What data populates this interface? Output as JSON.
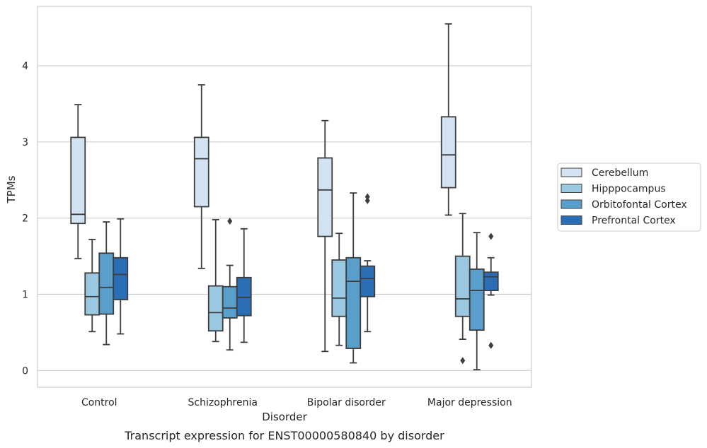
{
  "chart_data": {
    "type": "box",
    "xlabel": "Disorder",
    "ylabel": "TPMs",
    "caption": "Transcript expression for ENST00000580840 by disorder",
    "ylim": [
      -0.22,
      4.78
    ],
    "yticks": [
      0,
      1,
      2,
      3,
      4
    ],
    "grid": "horizontal",
    "legend_position": "right",
    "categories": [
      "Control",
      "Schizophrenia",
      "Bipolar disorder",
      "Major depression"
    ],
    "series": [
      {
        "name": "Cerebellum",
        "color": "#d3e3f3",
        "boxes": [
          {
            "whislo": 1.47,
            "q1": 1.93,
            "med": 2.05,
            "q3": 3.06,
            "whishi": 3.49,
            "fliers": []
          },
          {
            "whislo": 1.34,
            "q1": 2.15,
            "med": 2.78,
            "q3": 3.06,
            "whishi": 3.75,
            "fliers": []
          },
          {
            "whislo": 0.25,
            "q1": 1.76,
            "med": 2.37,
            "q3": 2.79,
            "whishi": 3.28,
            "fliers": []
          },
          {
            "whislo": 2.04,
            "q1": 2.4,
            "med": 2.83,
            "q3": 3.33,
            "whishi": 4.55,
            "fliers": []
          }
        ]
      },
      {
        "name": "Hipppocampus",
        "color": "#9ac8e0",
        "boxes": [
          {
            "whislo": 0.51,
            "q1": 0.73,
            "med": 0.97,
            "q3": 1.28,
            "whishi": 1.72,
            "fliers": []
          },
          {
            "whislo": 0.38,
            "q1": 0.52,
            "med": 0.76,
            "q3": 1.11,
            "whishi": 1.98,
            "fliers": []
          },
          {
            "whislo": 0.33,
            "q1": 0.71,
            "med": 0.95,
            "q3": 1.45,
            "whishi": 1.8,
            "fliers": []
          },
          {
            "whislo": 0.41,
            "q1": 0.71,
            "med": 0.94,
            "q3": 1.5,
            "whishi": 2.06,
            "fliers": [
              0.13
            ]
          }
        ]
      },
      {
        "name": "Orbitofontal Cortex",
        "color": "#5a9fcb",
        "boxes": [
          {
            "whislo": 0.34,
            "q1": 0.74,
            "med": 1.09,
            "q3": 1.54,
            "whishi": 1.95,
            "fliers": []
          },
          {
            "whislo": 0.27,
            "q1": 0.69,
            "med": 0.82,
            "q3": 1.1,
            "whishi": 1.38,
            "fliers": [
              1.96
            ]
          },
          {
            "whislo": 0.1,
            "q1": 0.29,
            "med": 1.17,
            "q3": 1.48,
            "whishi": 2.33,
            "fliers": []
          },
          {
            "whislo": 0.01,
            "q1": 0.53,
            "med": 1.05,
            "q3": 1.33,
            "whishi": 1.81,
            "fliers": []
          }
        ]
      },
      {
        "name": "Prefrontal Cortex",
        "color": "#2a6fb5",
        "boxes": [
          {
            "whislo": 0.48,
            "q1": 0.93,
            "med": 1.26,
            "q3": 1.48,
            "whishi": 1.99,
            "fliers": []
          },
          {
            "whislo": 0.37,
            "q1": 0.72,
            "med": 0.96,
            "q3": 1.22,
            "whishi": 1.86,
            "fliers": []
          },
          {
            "whislo": 0.51,
            "q1": 0.97,
            "med": 1.21,
            "q3": 1.37,
            "whishi": 1.44,
            "fliers": [
              2.23,
              2.28
            ]
          },
          {
            "whislo": 0.99,
            "q1": 1.05,
            "med": 1.23,
            "q3": 1.29,
            "whishi": 1.48,
            "fliers": [
              0.33,
              1.76
            ]
          }
        ]
      }
    ]
  }
}
